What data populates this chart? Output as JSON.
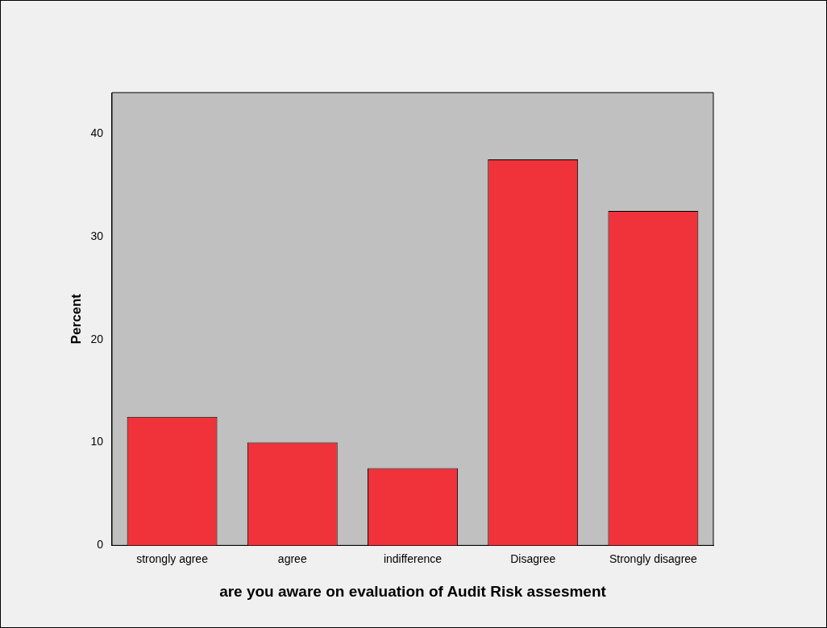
{
  "chart_data": {
    "type": "bar",
    "xlabel": "are you aware on evaluation of Audit Risk assesment",
    "ylabel": "Percent",
    "categories": [
      "strongly agree",
      "agree",
      "indifference",
      "Disagree",
      "Strongly disagree"
    ],
    "values": [
      12.5,
      10.0,
      7.5,
      37.5,
      32.5
    ],
    "color": "#f0323a",
    "ylim": [
      0,
      44
    ],
    "yticks": [
      0,
      10,
      20,
      30,
      40
    ],
    "grid": false,
    "legend": false
  }
}
